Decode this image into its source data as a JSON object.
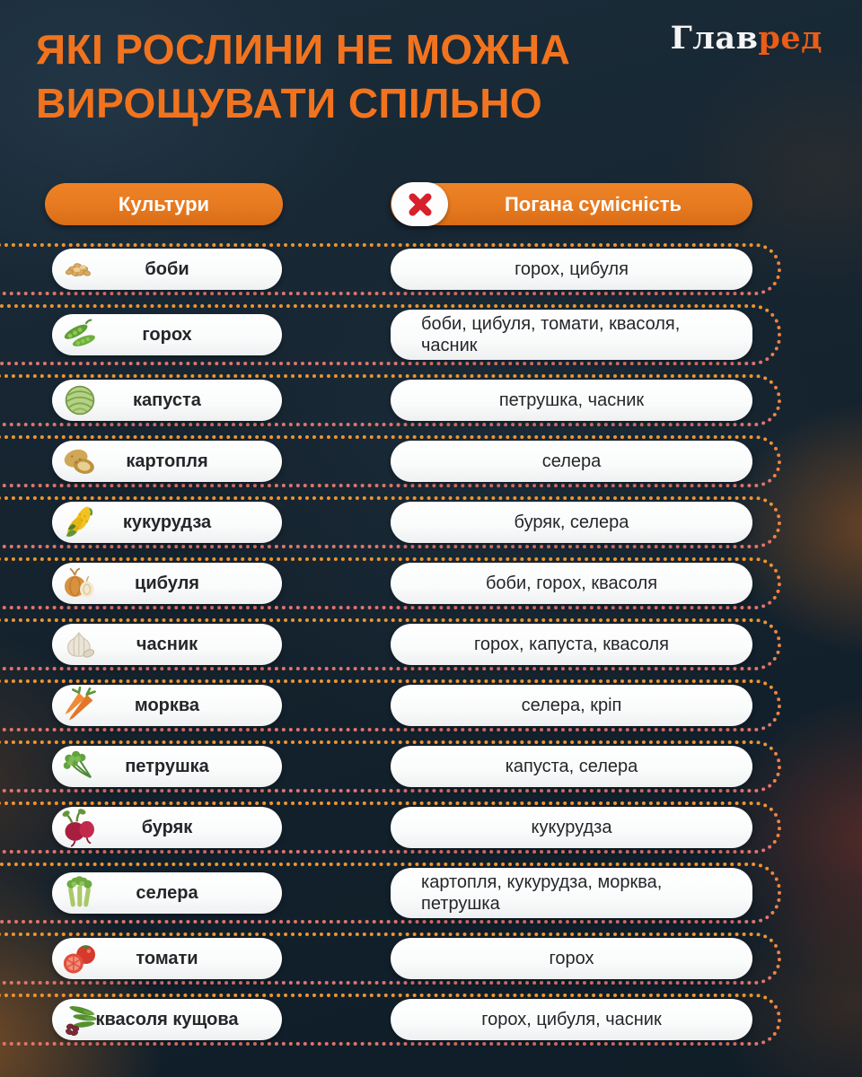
{
  "title": {
    "line1": "ЯКІ РОСЛИНИ НЕ МОЖНА",
    "line2": "ВИРОЩУВАТИ СПІЛЬНО"
  },
  "logo": {
    "part1": "Глав",
    "part2": "ред"
  },
  "table": {
    "col_left": "Культури",
    "col_right": "Погана сумісність",
    "col_right_icon": "x-cross-icon",
    "rows": [
      {
        "icon": "beans-icon",
        "culture": "боби",
        "bad": "горох, цибуля"
      },
      {
        "icon": "peas-icon",
        "culture": "горох",
        "bad": "боби, цибуля, томати, квасоля, часник",
        "multiline": true
      },
      {
        "icon": "cabbage-icon",
        "culture": "капуста",
        "bad": "петрушка, часник"
      },
      {
        "icon": "potato-icon",
        "culture": "картопля",
        "bad": "селера"
      },
      {
        "icon": "corn-icon",
        "culture": "кукурудза",
        "bad": "буряк, селера"
      },
      {
        "icon": "onion-icon",
        "culture": "цибуля",
        "bad": "боби, горох, квасоля"
      },
      {
        "icon": "garlic-icon",
        "culture": "часник",
        "bad": "горох, капуста, квасоля"
      },
      {
        "icon": "carrot-icon",
        "culture": "морква",
        "bad": "селера, кріп"
      },
      {
        "icon": "parsley-icon",
        "culture": "петрушка",
        "bad": "капуста, селера"
      },
      {
        "icon": "beet-icon",
        "culture": "буряк",
        "bad": "кукурудза"
      },
      {
        "icon": "celery-icon",
        "culture": "селера",
        "bad": "картопля, кукурудза, морква, петрушка",
        "multiline": true
      },
      {
        "icon": "tomato-icon",
        "culture": "томати",
        "bad": "горох"
      },
      {
        "icon": "bush-beans-icon",
        "culture": "квасоля кущова",
        "bad": "горох, цибуля, часник"
      }
    ]
  },
  "colors": {
    "title_orange": "#f2731e",
    "logo_orange": "#e95d17",
    "header_pill": "#e67a20",
    "x_red": "#d6202b",
    "dot_amber": "#ee9430",
    "dot_salmon": "#e1746b",
    "pill_text": "#24262a",
    "background": "#15232e"
  }
}
